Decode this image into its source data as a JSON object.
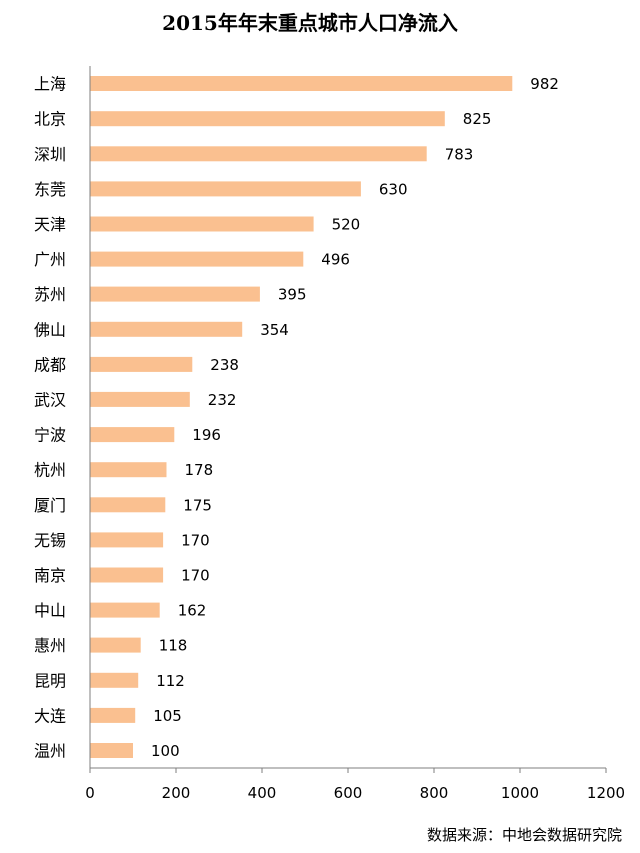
{
  "chart_data": {
    "type": "bar",
    "orientation": "horizontal",
    "title": "2015年年末重点城市人口净流入",
    "categories": [
      "上海",
      "北京",
      "深圳",
      "东莞",
      "天津",
      "广州",
      "苏州",
      "佛山",
      "成都",
      "武汉",
      "宁波",
      "杭州",
      "厦门",
      "无锡",
      "南京",
      "中山",
      "惠州",
      "昆明",
      "大连",
      "温州"
    ],
    "values": [
      982,
      825,
      783,
      630,
      520,
      496,
      395,
      354,
      238,
      232,
      196,
      178,
      175,
      170,
      170,
      162,
      118,
      112,
      105,
      100
    ],
    "xlim": [
      0,
      1200
    ],
    "xticks": [
      0,
      200,
      400,
      600,
      800,
      1000,
      1200
    ],
    "xlabel": "",
    "ylabel": "",
    "grid": false,
    "bar_color": "#fac090",
    "source": "数据来源：中地会数据研究院"
  }
}
